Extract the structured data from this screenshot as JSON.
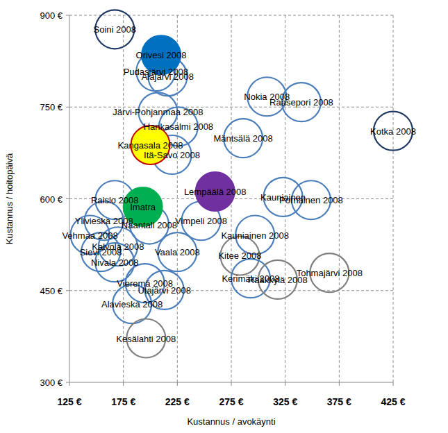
{
  "chart_data": {
    "type": "scatter",
    "x_label": "Kustannus / avokäynti",
    "y_label": "Kustannus / hoitopäivä",
    "xlim": [
      125,
      425
    ],
    "xticks": [
      {
        "value": 125,
        "label": "125 €"
      },
      {
        "value": 175,
        "label": "175 €"
      },
      {
        "value": 225,
        "label": "225 €"
      },
      {
        "value": 275,
        "label": "275 €"
      },
      {
        "value": 325,
        "label": "325 €"
      },
      {
        "value": 375,
        "label": "375 €"
      },
      {
        "value": 425,
        "label": "425 €"
      }
    ],
    "ylim": [
      300,
      900
    ],
    "yticks": [
      {
        "value": 300,
        "label": "300 €"
      },
      {
        "value": 450,
        "label": "450 €"
      },
      {
        "value": 600,
        "label": "600 €"
      },
      {
        "value": 750,
        "label": "750 €"
      },
      {
        "value": 900,
        "label": "900 €"
      }
    ],
    "grid": true,
    "series": [
      {
        "marker": "ring",
        "labels": [
          "Soini 2008",
          "Pudasjärvi 2008",
          "Alajärvi 2008",
          "Järvi-Pohjanmaa 2008",
          "Hankasalmi 2008",
          "Itä-Savo 2008",
          "Mäntsälä 2008",
          "Nokia 2008",
          "Raasepori 2008",
          "Kotka 2008",
          "Kauniainen",
          "Pornainen 2008",
          "Kauniainen 2008",
          "Kitee 2008",
          "Kerimäki 2008",
          "Rääkkylä 2008",
          "Tohmajärvi 2008",
          "Vimpeli 2008",
          "Vaala 2008",
          "Naantali 2008",
          "Raisio 2008",
          "Ylivieska 2008",
          "Vehmaa 2008",
          "Kalvola 2008",
          "Sievi 2008",
          "Nivala 2008",
          "Vieremä 2008",
          "Utajärvi 2008",
          "Alavieska 2008",
          "Kesälahti 2008"
        ],
        "x": [
          167,
          205,
          216,
          207,
          226,
          220,
          286,
          308,
          340,
          425,
          323,
          349,
          297,
          283,
          293,
          318,
          366,
          247,
          225,
          199,
          167,
          157,
          144,
          170,
          154,
          167,
          195,
          213,
          183,
          196
        ],
        "values": [
          877,
          808,
          800,
          742,
          718,
          672,
          699,
          767,
          758,
          711,
          603,
          598,
          541,
          507,
          470,
          468,
          479,
          564,
          513,
          558,
          598,
          564,
          541,
          522,
          513,
          496,
          462,
          451,
          428,
          372
        ],
        "colors": [
          "#1f3864",
          "#4a7ebb",
          "#4a7ebb",
          "#4a7ebb",
          "#4a7ebb",
          "#4a7ebb",
          "#4a7ebb",
          "#4a7ebb",
          "#4a7ebb",
          "#1f3864",
          "#4a7ebb",
          "#4a7ebb",
          "#4a7ebb",
          "#7f7f7f",
          "#4a7ebb",
          "#7f7f7f",
          "#7f7f7f",
          "#4a7ebb",
          "#4a7ebb",
          "#4a7ebb",
          "#4a7ebb",
          "#4a7ebb",
          "#4a7ebb",
          "#4a7ebb",
          "#4a7ebb",
          "#4a7ebb",
          "#4a7ebb",
          "#4a7ebb",
          "#4a7ebb",
          "#7f7f7f"
        ]
      },
      {
        "marker": "circle",
        "labels": [
          "Orivesi 2008",
          "Kangasala 2008",
          "Lempäälä 2008",
          "Imatra"
        ],
        "x": [
          210,
          200,
          260,
          193
        ],
        "values": [
          835,
          688,
          612,
          587
        ],
        "colors": [
          "#0070c0",
          "#ffff00",
          "#7030a0",
          "#00b050"
        ]
      }
    ]
  }
}
